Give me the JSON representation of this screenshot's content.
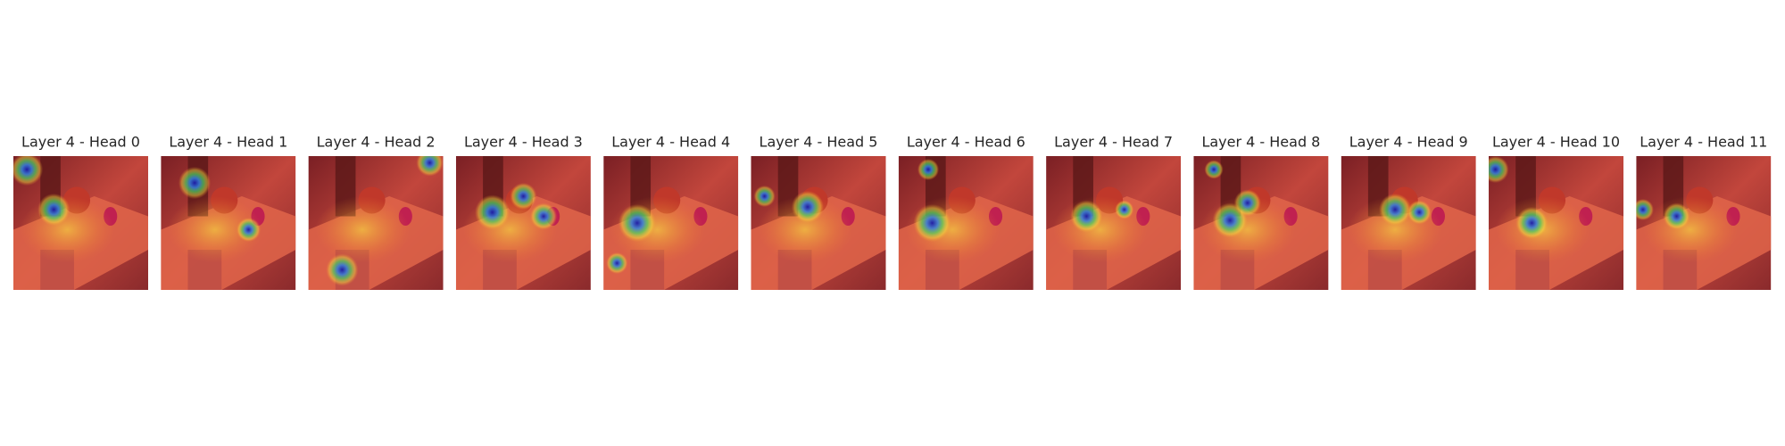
{
  "panels": [
    {
      "title": "Layer 4 - Head 0"
    },
    {
      "title": "Layer 4 - Head 1"
    },
    {
      "title": "Layer 4 - Head 2"
    },
    {
      "title": "Layer 4 - Head 3"
    },
    {
      "title": "Layer 4 - Head 4"
    },
    {
      "title": "Layer 4 - Head 5"
    },
    {
      "title": "Layer 4 - Head 6"
    },
    {
      "title": "Layer 4 - Head 7"
    },
    {
      "title": "Layer 4 - Head 8"
    },
    {
      "title": "Layer 4 - Head 9"
    },
    {
      "title": "Layer 4 - Head 10"
    },
    {
      "title": "Layer 4 - Head 11"
    }
  ]
}
